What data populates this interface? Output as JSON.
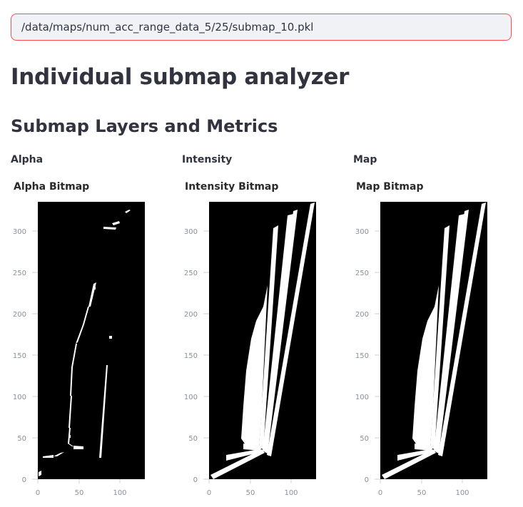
{
  "path_input": {
    "value": "/data/maps/num_acc_range_data_5/25/submap_10.pkl"
  },
  "page_title": "Individual submap analyzer",
  "section_title": "Submap Layers and Metrics",
  "columns": [
    {
      "label": "Alpha",
      "plot_title": "Alpha Bitmap"
    },
    {
      "label": "Intensity",
      "plot_title": "Intensity Bitmap"
    },
    {
      "label": "Map",
      "plot_title": "Map Bitmap"
    }
  ],
  "axes": {
    "x_ticks": [
      "0",
      "50",
      "100"
    ],
    "y_ticks": [
      "0",
      "50",
      "100",
      "150",
      "200",
      "250",
      "300"
    ],
    "xlim": [
      0,
      130
    ],
    "ylim": [
      0,
      338
    ]
  },
  "colors": {
    "background": "#000000",
    "foreground": "#ffffff",
    "accent_border": "#ff4b4b"
  }
}
